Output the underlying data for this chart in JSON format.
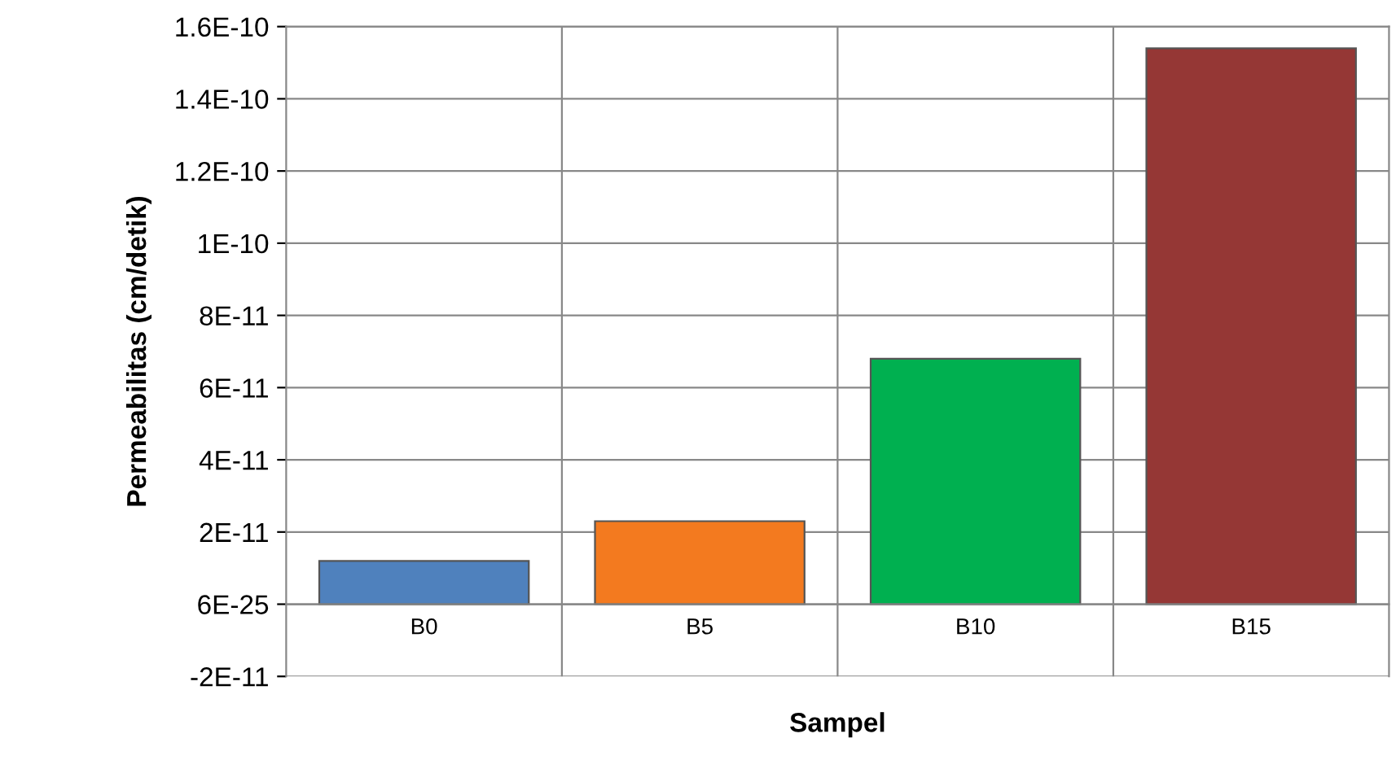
{
  "chart_data": {
    "type": "bar",
    "xlabel": "Sampel",
    "ylabel": "Permeabilitas (cm/detik)",
    "categories": [
      "B0",
      "B5",
      "B10",
      "B15"
    ],
    "values": [
      1.2e-11,
      2.3e-11,
      6.8e-11,
      1.54e-10
    ],
    "colors": [
      "#4f81bd",
      "#f37a1f",
      "#00b050",
      "#953735"
    ],
    "ylim": [
      -2e-11,
      1.6e-10
    ],
    "yticks": [
      {
        "value": -2e-11,
        "label": "-2E-11"
      },
      {
        "value": 6e-25,
        "label": "6E-25"
      },
      {
        "value": 2e-11,
        "label": "2E-11"
      },
      {
        "value": 4e-11,
        "label": "4E-11"
      },
      {
        "value": 6e-11,
        "label": "6E-11"
      },
      {
        "value": 8e-11,
        "label": "8E-11"
      },
      {
        "value": 1e-10,
        "label": "1E-10"
      },
      {
        "value": 1.2e-10,
        "label": "1.2E-10"
      },
      {
        "value": 1.4e-10,
        "label": "1.4E-10"
      },
      {
        "value": 1.6e-10,
        "label": "1.6E-10"
      }
    ],
    "grid": true,
    "legend": false
  }
}
